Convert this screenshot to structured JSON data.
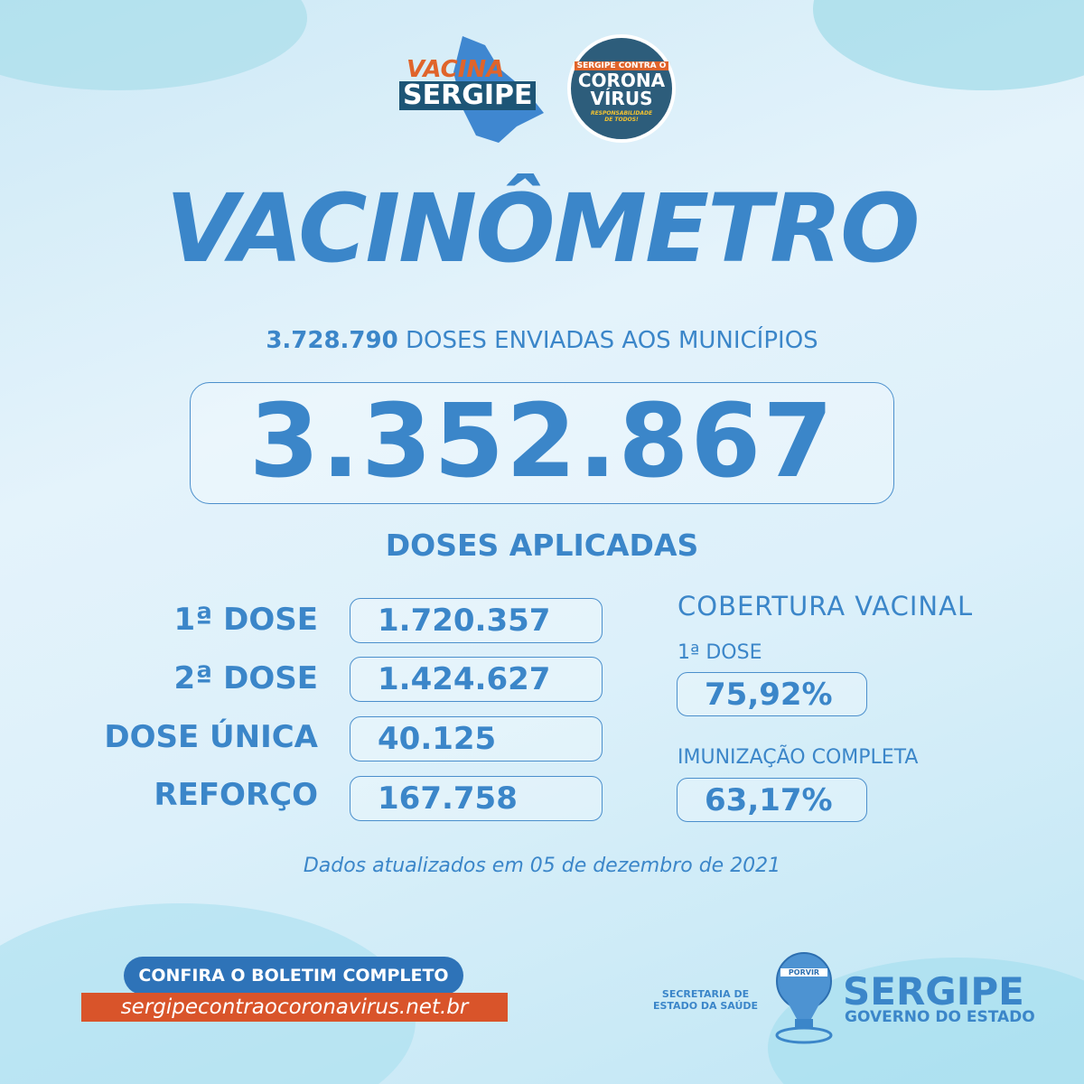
{
  "logos": {
    "vacina_sergipe": {
      "line1": "VACINA",
      "line2": "SERGIPE"
    },
    "sergipe_contra": {
      "top": "SERGIPE CONTRA O",
      "line1": "CORONA",
      "line2": "VÍRUS",
      "tagline": "RESPONSABILIDADE DE TODOS!"
    }
  },
  "title": "VACINÔMETRO",
  "sent": {
    "value": "3.728.790",
    "label": "DOSES ENVIADAS AOS MUNICÍPIOS"
  },
  "total_applied": "3.352.867",
  "applied_label": "DOSES APLICADAS",
  "doses": [
    {
      "label": "1ª DOSE",
      "value": "1.720.357"
    },
    {
      "label": "2ª DOSE",
      "value": "1.424.627"
    },
    {
      "label": "DOSE ÚNICA",
      "value": "40.125"
    },
    {
      "label": "REFORÇO",
      "value": "167.758"
    }
  ],
  "coverage": {
    "title": "COBERTURA VACINAL",
    "first_label": "1ª DOSE",
    "first_value": "75,92%",
    "full_label": "IMUNIZAÇÃO COMPLETA",
    "full_value": "63,17%"
  },
  "updated": "Dados atualizados em 05 de dezembro de 2021",
  "footer": {
    "cta": "CONFIRA O BOLETIM COMPLETO",
    "link": "sergipecontraocoronavirus.net.br",
    "secretaria": "SECRETARIA DE ESTADO DA SAÚDE",
    "balloon_text": "PORVIR",
    "gov_title": "SERGIPE",
    "gov_sub": "GOVERNO DO ESTADO"
  },
  "colors": {
    "primary": "#3b86c9",
    "dark": "#2a6aa8",
    "orange": "#d9542a",
    "navy": "#2d5d7b"
  }
}
